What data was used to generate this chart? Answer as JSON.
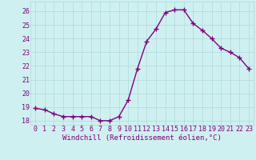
{
  "x": [
    0,
    1,
    2,
    3,
    4,
    5,
    6,
    7,
    8,
    9,
    10,
    11,
    12,
    13,
    14,
    15,
    16,
    17,
    18,
    19,
    20,
    21,
    22,
    23
  ],
  "y": [
    18.9,
    18.8,
    18.5,
    18.3,
    18.3,
    18.3,
    18.3,
    18.0,
    18.0,
    18.3,
    19.5,
    21.8,
    23.8,
    24.7,
    25.9,
    26.1,
    26.1,
    25.1,
    24.6,
    24.0,
    23.3,
    23.0,
    22.6,
    21.8
  ],
  "line_color": "#800080",
  "marker": "+",
  "marker_size": 4,
  "line_width": 1.0,
  "bg_color": "#cff0f0",
  "grid_color": "#b0d8d8",
  "xlabel": "Windchill (Refroidissement éolien,°C)",
  "xlabel_color": "#800080",
  "xlabel_fontsize": 6.5,
  "tick_color": "#800080",
  "tick_fontsize": 6,
  "ylim": [
    17.7,
    26.7
  ],
  "yticks": [
    18,
    19,
    20,
    21,
    22,
    23,
    24,
    25,
    26
  ],
  "xticks": [
    0,
    1,
    2,
    3,
    4,
    5,
    6,
    7,
    8,
    9,
    10,
    11,
    12,
    13,
    14,
    15,
    16,
    17,
    18,
    19,
    20,
    21,
    22,
    23
  ],
  "xlim": [
    -0.5,
    23.5
  ]
}
